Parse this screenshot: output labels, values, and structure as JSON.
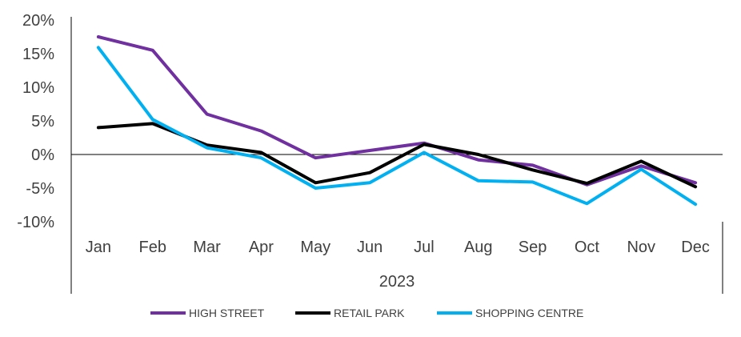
{
  "chart_data": {
    "type": "line",
    "categories": [
      "Jan",
      "Feb",
      "Mar",
      "Apr",
      "May",
      "Jun",
      "Jul",
      "Aug",
      "Sep",
      "Oct",
      "Nov",
      "Dec"
    ],
    "category_group": "2023",
    "series": [
      {
        "name": "HIGH STREET",
        "color": "#7030A0",
        "values": [
          17.5,
          15.5,
          6.0,
          3.5,
          -0.5,
          0.6,
          1.7,
          -0.8,
          -1.6,
          -4.5,
          -1.7,
          -4.2
        ]
      },
      {
        "name": "RETAIL PARK",
        "color": "#000000",
        "values": [
          4.0,
          4.6,
          1.4,
          0.3,
          -4.2,
          -2.7,
          1.5,
          0.0,
          -2.3,
          -4.3,
          -1.0,
          -4.8
        ]
      },
      {
        "name": "SHOPPING CENTRE",
        "color": "#00B0F0",
        "values": [
          15.9,
          5.2,
          1.0,
          -0.5,
          -5.0,
          -4.2,
          0.3,
          -3.9,
          -4.1,
          -7.3,
          -2.2,
          -7.4
        ]
      }
    ],
    "ylim": [
      -10,
      20
    ],
    "yticks": [
      20,
      15,
      10,
      5,
      0,
      -5,
      -10
    ],
    "ytick_labels": [
      "20%",
      "15%",
      "10%",
      "5%",
      "0%",
      "-5%",
      "-10%"
    ],
    "title": "",
    "xlabel": "",
    "ylabel": "",
    "grid": false,
    "legend": "bottom"
  }
}
